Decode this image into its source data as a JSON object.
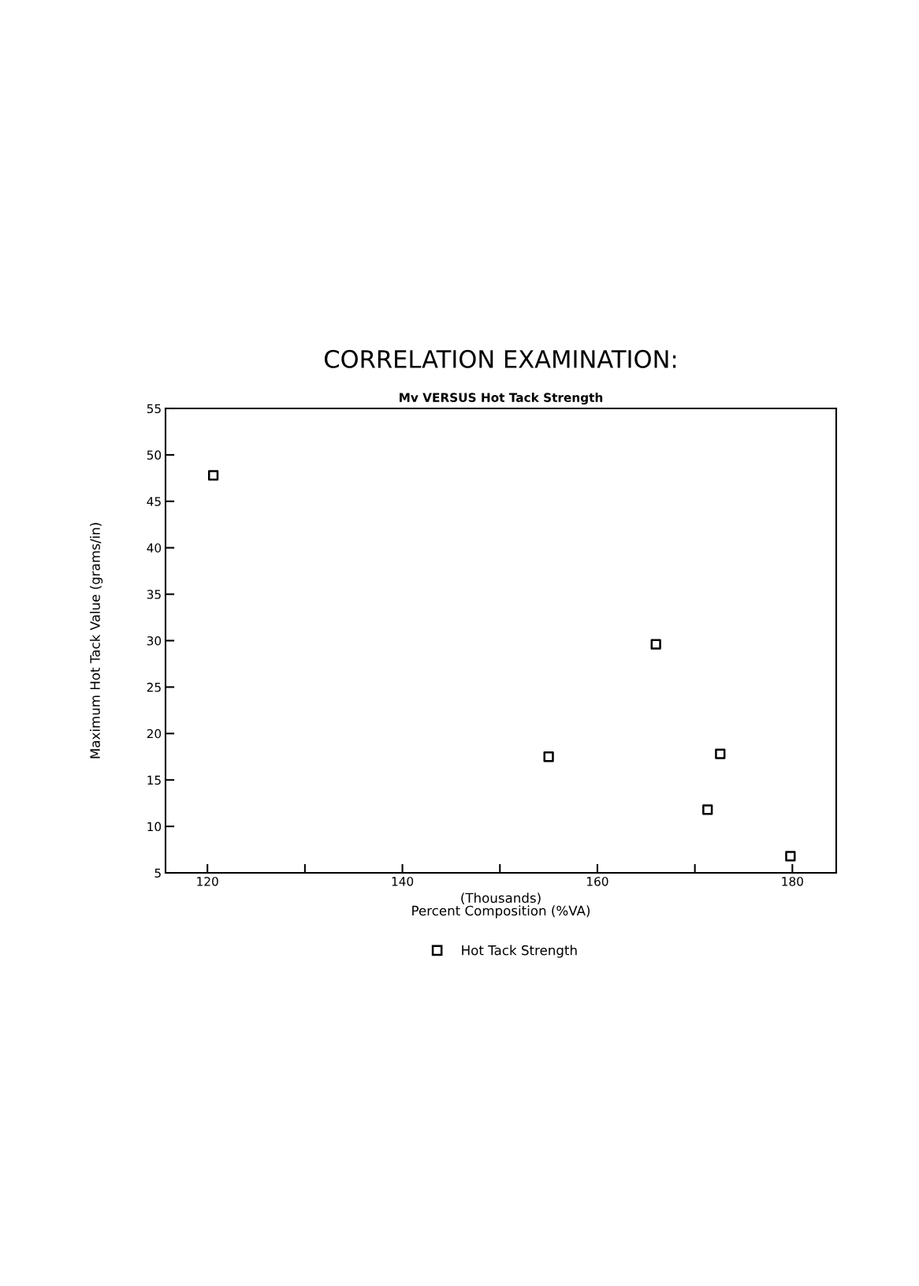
{
  "chart_data": {
    "type": "scatter",
    "title": "CORRELATION EXAMINATION:",
    "subtitle": "Mv VERSUS Hot Tack Strength",
    "xlabel": "(Thousands)\nPercent Composition (%VA)",
    "ylabel": "Maximum Hot Tack Value (grams/in)",
    "series": [
      {
        "name": "Hot Tack Strength",
        "color": "#000000",
        "x": [
          120.6,
          155.0,
          166.0,
          171.3,
          172.6,
          179.8
        ],
        "values": [
          47.8,
          17.5,
          29.6,
          11.8,
          17.8,
          6.8
        ]
      }
    ],
    "xlim": [
      115.7,
      184.5
    ],
    "xticks": [
      120,
      {
        "value": 130,
        "label": null
      },
      140,
      {
        "value": 150,
        "label": null
      },
      160,
      {
        "value": 170,
        "label": null
      },
      180
    ],
    "ylim": [
      5,
      55
    ],
    "yticks": [
      5,
      10,
      15,
      20,
      25,
      30,
      35,
      40,
      45,
      50,
      55
    ],
    "marker": "square",
    "grid": false,
    "legend": "bottom"
  }
}
